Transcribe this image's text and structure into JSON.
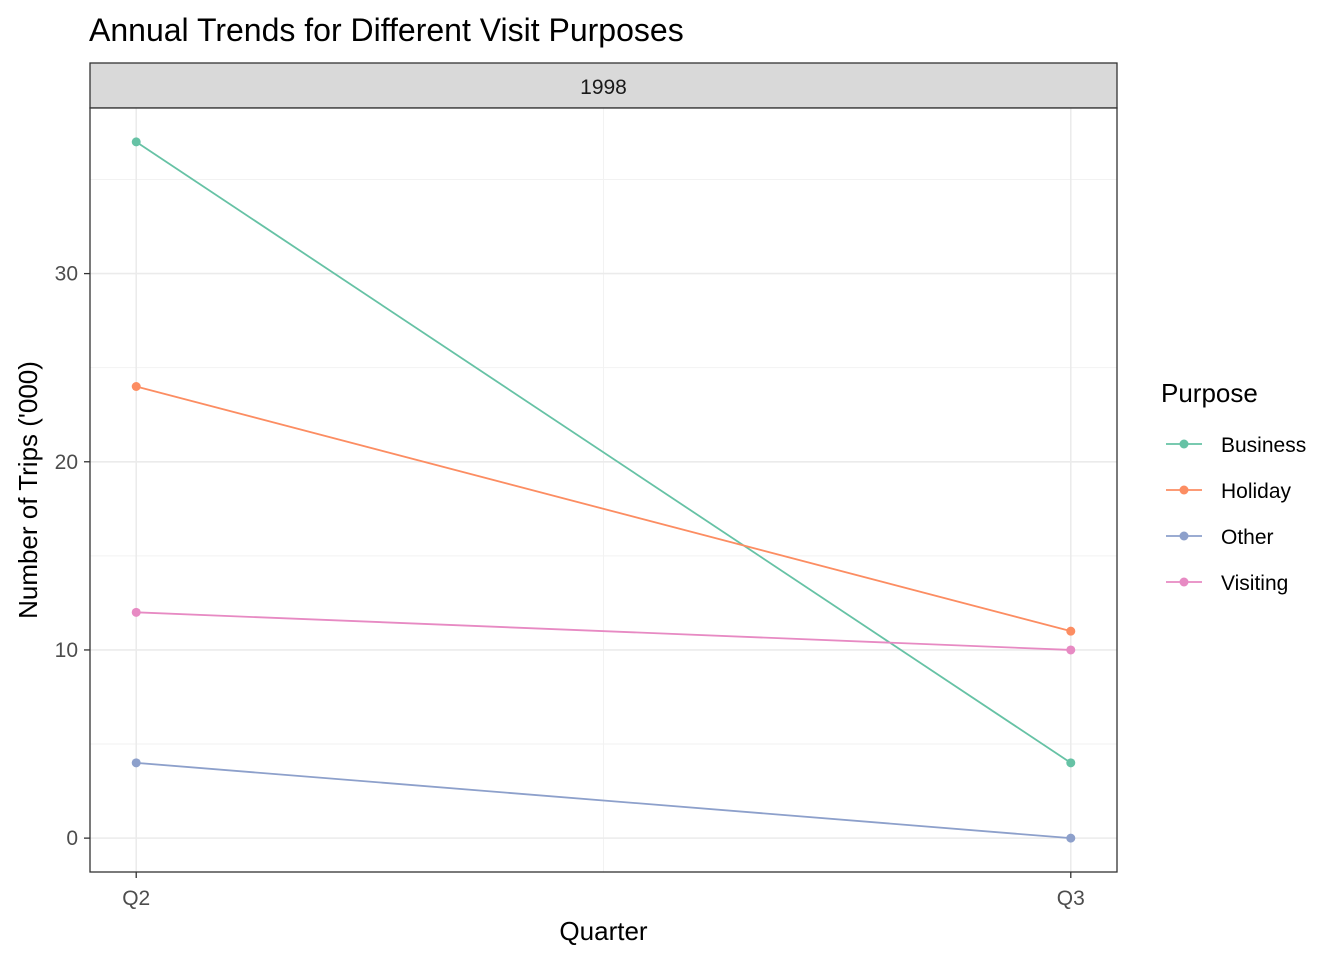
{
  "chart_data": {
    "type": "line",
    "title": "Annual Trends for Different Visit Purposes",
    "facet": "1998",
    "xlabel": "Quarter",
    "ylabel": "Number of Trips ('000)",
    "categories": [
      "Q2",
      "Q3"
    ],
    "ylim": [
      -1.8,
      38.8
    ],
    "yticks": [
      0,
      10,
      20,
      30
    ],
    "grid": true,
    "legend": {
      "title": "Purpose",
      "position": "right"
    },
    "series": [
      {
        "name": "Business",
        "color": "#66c2a5",
        "values": [
          37,
          4
        ]
      },
      {
        "name": "Holiday",
        "color": "#fc8d62",
        "values": [
          24,
          11
        ]
      },
      {
        "name": "Other",
        "color": "#8da0cb",
        "values": [
          4,
          0
        ]
      },
      {
        "name": "Visiting",
        "color": "#e78ac3",
        "values": [
          12,
          10
        ]
      }
    ]
  }
}
